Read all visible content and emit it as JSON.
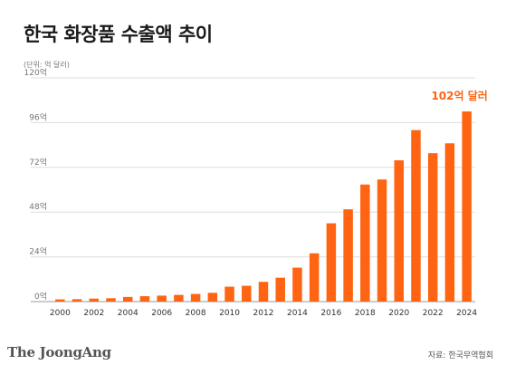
{
  "chart_data": {
    "type": "bar",
    "title": "한국 화장품 수출액 추이",
    "unit_label": "(단위: 억 달러)",
    "categories": [
      "2000",
      "2001",
      "2002",
      "2003",
      "2004",
      "2005",
      "2006",
      "2007",
      "2008",
      "2009",
      "2010",
      "2011",
      "2012",
      "2013",
      "2014",
      "2015",
      "2016",
      "2017",
      "2018",
      "2019",
      "2020",
      "2021",
      "2022",
      "2023",
      "2024"
    ],
    "x_tick_labels": [
      "2000",
      "2002",
      "2004",
      "2006",
      "2008",
      "2010",
      "2012",
      "2014",
      "2016",
      "2018",
      "2020",
      "2022",
      "2024"
    ],
    "values": [
      1.2,
      1.3,
      1.6,
      1.8,
      2.5,
      2.9,
      3.2,
      3.6,
      4.1,
      4.7,
      8.0,
      8.5,
      10.6,
      12.8,
      18.2,
      25.9,
      42.0,
      49.5,
      62.8,
      65.5,
      75.8,
      92.0,
      79.6,
      84.9,
      102.0
    ],
    "ylim": [
      0,
      120
    ],
    "y_ticks": [
      0,
      24,
      48,
      72,
      96,
      120
    ],
    "y_tick_labels": [
      "0억",
      "24억",
      "48억",
      "72억",
      "96억",
      "120억"
    ],
    "xlabel": "",
    "ylabel": "",
    "grid": true,
    "bar_color": "#fe6411",
    "annotation": {
      "text": "102억 달러",
      "category": "2024",
      "color": "#fe6411"
    },
    "brand": "The JoongAng",
    "source": "자료: 한국무역협회"
  }
}
